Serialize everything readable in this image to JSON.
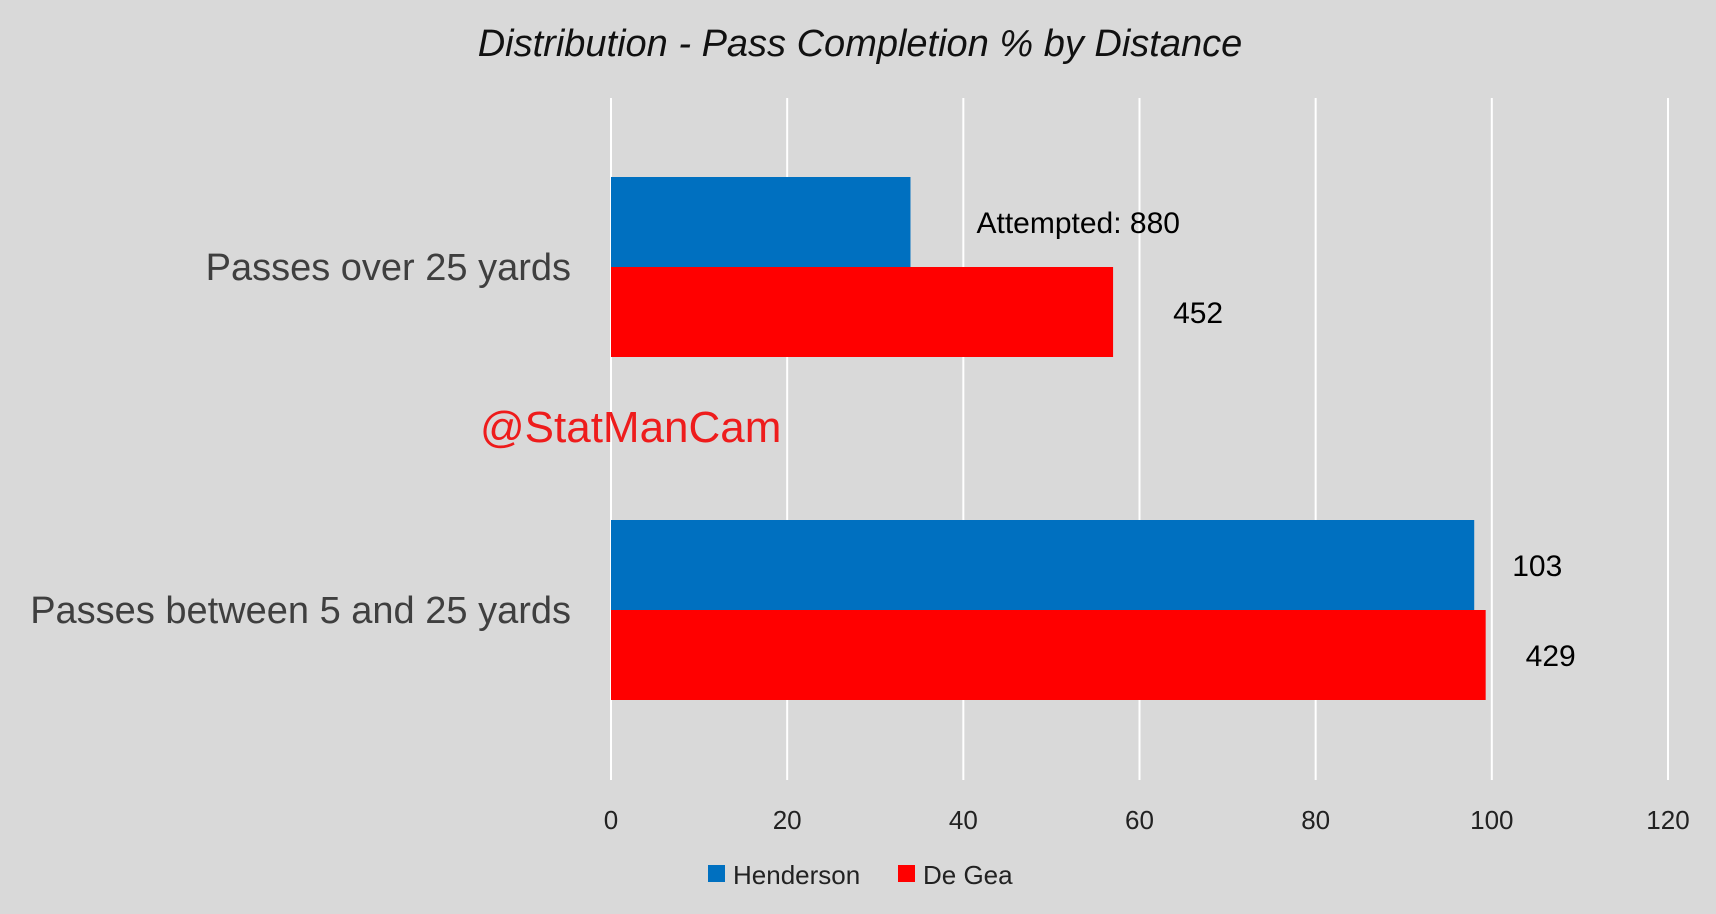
{
  "chart_data": {
    "type": "bar",
    "orientation": "horizontal",
    "title": "Distribution - Pass Completion % by Distance",
    "categories": [
      "Passes over 25 yards",
      "Passes between 5 and 25 yards"
    ],
    "series": [
      {
        "name": "Henderson",
        "color": "#0070c0",
        "values": [
          34,
          98
        ],
        "labels": [
          "Attempted: 880",
          "103"
        ]
      },
      {
        "name": "De Gea",
        "color": "#ff0000",
        "values": [
          57,
          99.3
        ],
        "labels": [
          "452",
          "429"
        ]
      }
    ],
    "xlim": [
      0,
      120
    ],
    "xticks": [
      "0",
      "20",
      "40",
      "60",
      "80",
      "100",
      "120"
    ],
    "grid": true,
    "legend_position": "bottom"
  },
  "watermark": "@StatManCam"
}
